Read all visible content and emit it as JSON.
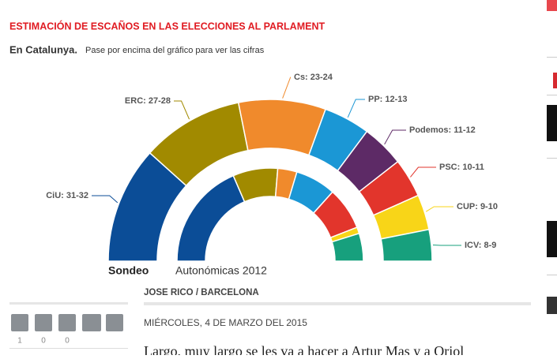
{
  "header": {
    "title": "ESTIMACIÓN DE ESCAÑOS EN LAS ELECCIONES AL PARLAMENT",
    "region": "En Catalunya.",
    "hint": "Pase por encima del gráfico para ver las cifras"
  },
  "chart_data": {
    "type": "hemicycle",
    "categories": [
      "CiU",
      "ERC",
      "Cs",
      "PP",
      "Podemos",
      "PSC",
      "CUP",
      "ICV"
    ],
    "colors": [
      "#0b4d97",
      "#a18a00",
      "#f08a2c",
      "#1b97d5",
      "#5d2a66",
      "#e2352c",
      "#f8d518",
      "#17a07d"
    ],
    "series": [
      {
        "name": "Sondeo",
        "low": [
          31,
          27,
          23,
          12,
          11,
          10,
          9,
          8
        ],
        "values": [
          32,
          28,
          24,
          13,
          12,
          11,
          10,
          9
        ],
        "value_labels": [
          "CiU: 31-32",
          "ERC: 27-28",
          "Cs: 23-24",
          "PP: 12-13",
          "Podemos: 11-12",
          "PSC: 10-11",
          "CUP: 9-10",
          "ICV: 8-9"
        ]
      },
      {
        "name": "Autonómicas 2012",
        "values": [
          50,
          21,
          9,
          19,
          0,
          20,
          3,
          13
        ]
      }
    ]
  },
  "article": {
    "byline": "JOSE RICO / BARCELONA",
    "date": "MIÉRCOLES, 4 DE MARZO DEL 2015",
    "lead": "Largo, muy largo se les va a hacer a Artur Mas y a Oriol"
  },
  "share": {
    "counts": [
      1,
      0,
      0
    ]
  }
}
